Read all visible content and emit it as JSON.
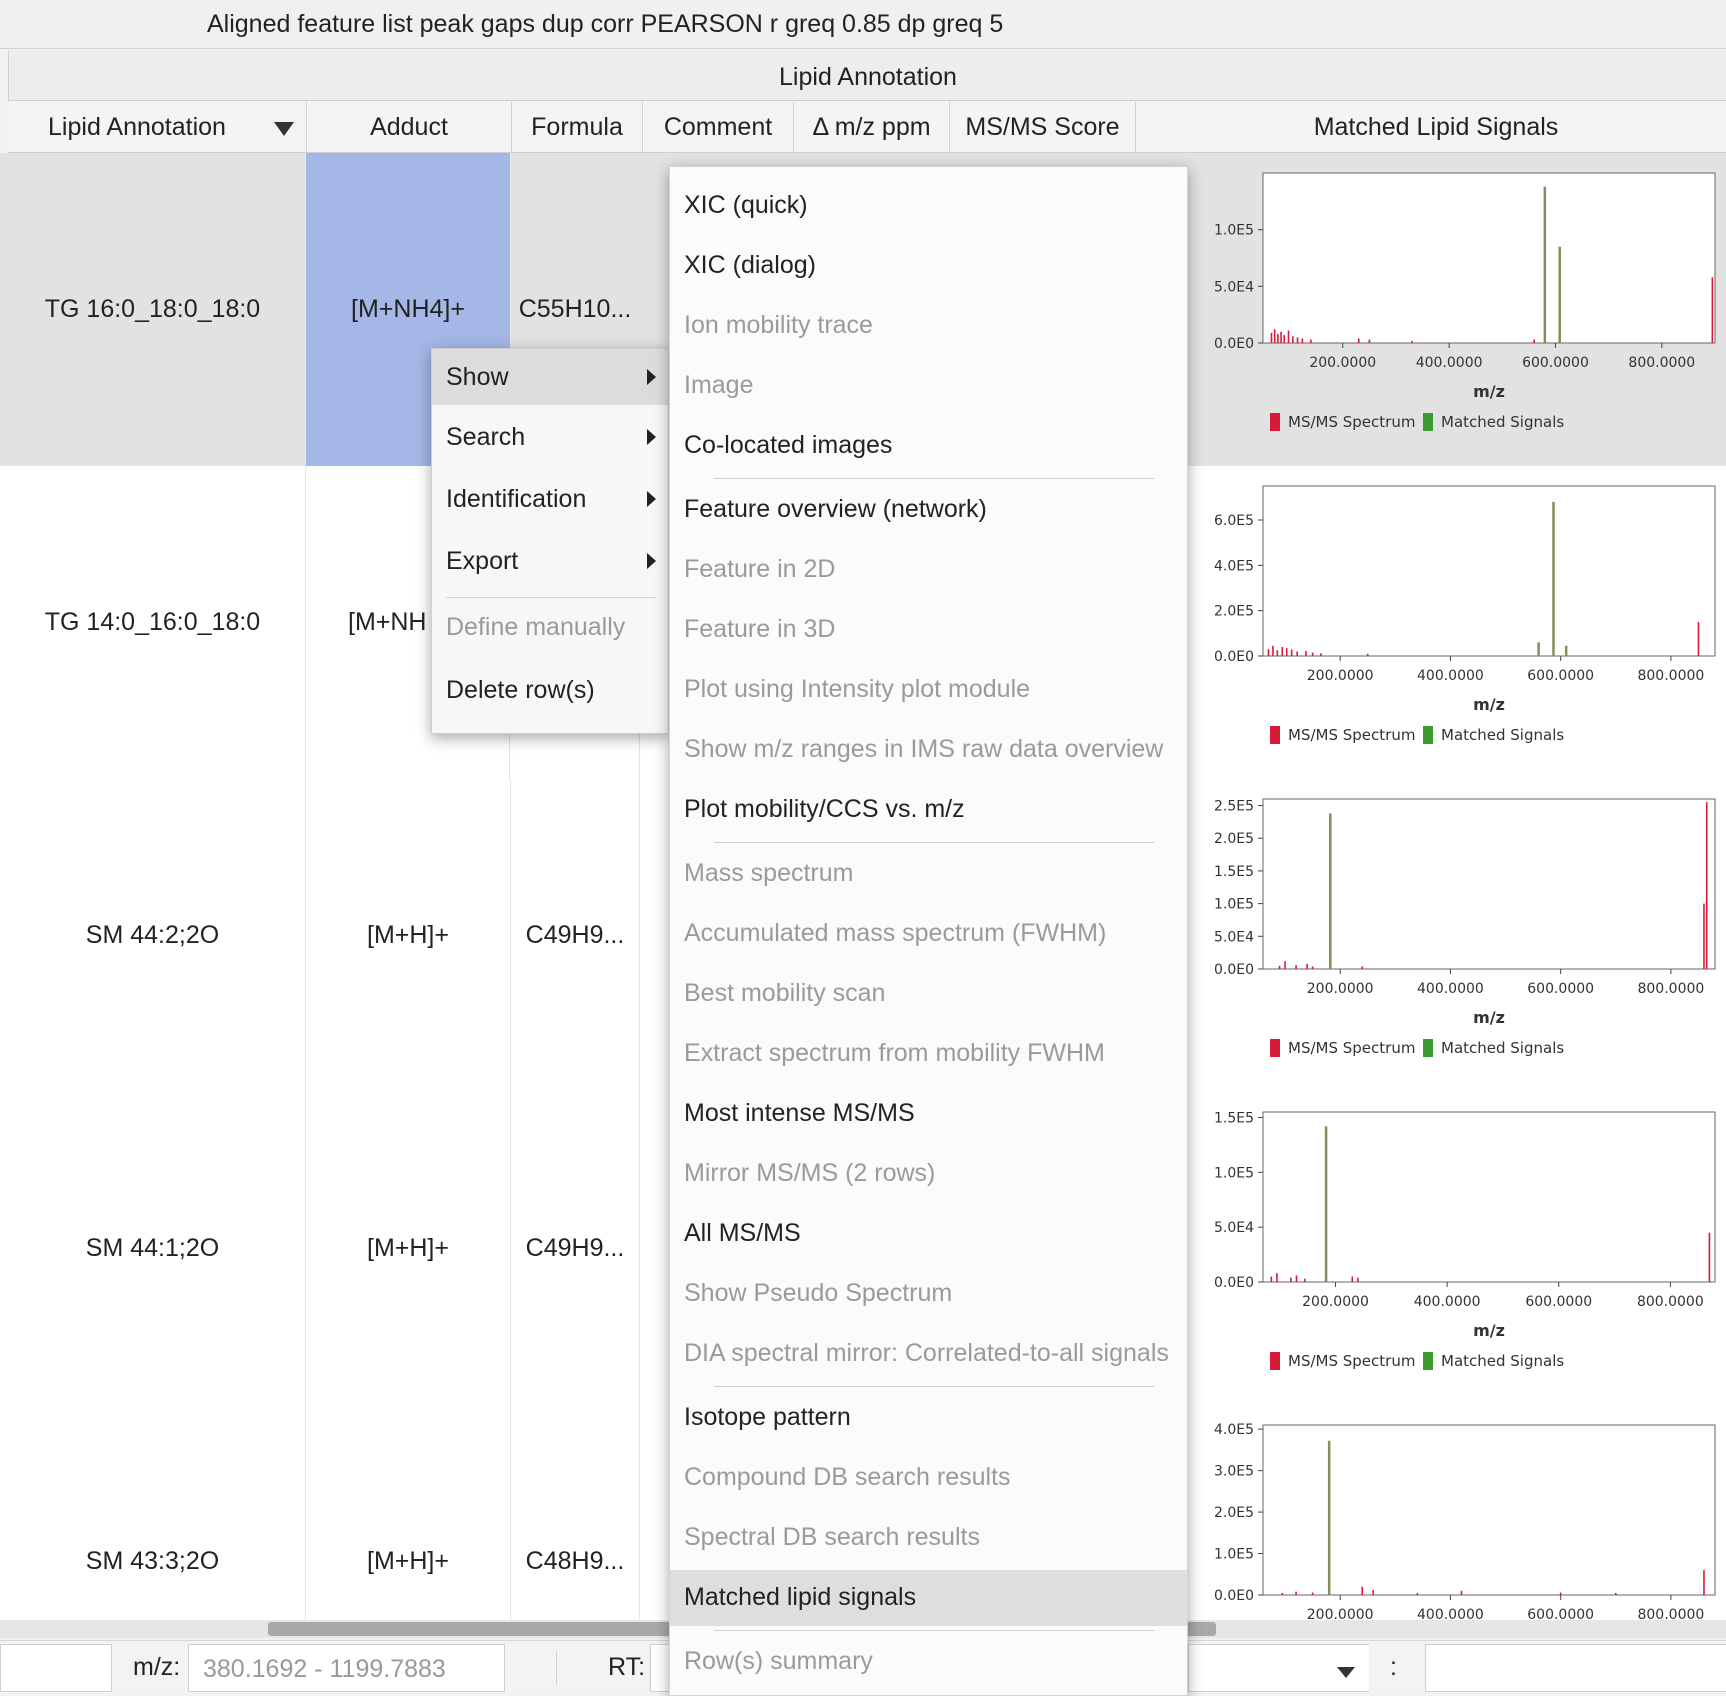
{
  "window_title": "Aligned feature list peak gaps dup corr PEARSON r greq 0.85 dp greq 5",
  "group_header": "Lipid Annotation",
  "columns": {
    "lipid": "Lipid Annotation",
    "adduct": "Adduct",
    "formula": "Formula",
    "comment": "Comment",
    "ppm": "Δ m/z ppm",
    "score": "MS/MS Score",
    "signals": "Matched Lipid Signals"
  },
  "rows": [
    {
      "lipid": "TG 16:0_18:0_18:0",
      "adduct": "[M+NH4]+",
      "formula": "C55H10...",
      "selected": true
    },
    {
      "lipid": "TG 14:0_16:0_18:0",
      "adduct": "[M+NH",
      "formula": "",
      "selected": false
    },
    {
      "lipid": "SM 44:2;2O",
      "adduct": "[M+H]+",
      "formula": "C49H9...",
      "selected": false
    },
    {
      "lipid": "SM 44:1;2O",
      "adduct": "[M+H]+",
      "formula": "C49H9...",
      "selected": false
    },
    {
      "lipid": "SM 43:3;2O",
      "adduct": "[M+H]+",
      "formula": "C48H9...",
      "selected": false
    }
  ],
  "context_menu": [
    {
      "label": "Show",
      "submenu": true,
      "active": true,
      "enabled": true
    },
    {
      "label": "Search",
      "submenu": true,
      "enabled": true
    },
    {
      "label": "Identification",
      "submenu": true,
      "enabled": true
    },
    {
      "label": "Export",
      "submenu": true,
      "enabled": true
    },
    {
      "label": "Define manually",
      "submenu": false,
      "enabled": false
    },
    {
      "label": "Delete row(s)",
      "submenu": false,
      "enabled": true
    }
  ],
  "show_submenu": [
    {
      "label": "XIC (quick)",
      "enabled": true
    },
    {
      "label": "XIC (dialog)",
      "enabled": true
    },
    {
      "label": "Ion mobility trace",
      "enabled": false
    },
    {
      "label": "Image",
      "enabled": false
    },
    {
      "label": "Co-located images",
      "enabled": true
    },
    {
      "label": "Feature overview (network)",
      "enabled": true
    },
    {
      "label": "Feature in 2D",
      "enabled": false
    },
    {
      "label": "Feature in 3D",
      "enabled": false
    },
    {
      "label": "Plot using Intensity plot module",
      "enabled": false
    },
    {
      "label": "Show m/z ranges in IMS raw data overview",
      "enabled": false
    },
    {
      "label": "Plot mobility/CCS vs. m/z",
      "enabled": true
    },
    {
      "label": "Mass spectrum",
      "enabled": false
    },
    {
      "label": "Accumulated mass spectrum (FWHM)",
      "enabled": false
    },
    {
      "label": "Best mobility scan",
      "enabled": false
    },
    {
      "label": "Extract spectrum from mobility FWHM",
      "enabled": false
    },
    {
      "label": "Most intense MS/MS",
      "enabled": true
    },
    {
      "label": "Mirror MS/MS (2 rows)",
      "enabled": false
    },
    {
      "label": "All MS/MS",
      "enabled": true
    },
    {
      "label": "Show Pseudo Spectrum",
      "enabled": false
    },
    {
      "label": "DIA spectral mirror: Correlated-to-all signals",
      "enabled": false
    },
    {
      "label": "Isotope pattern",
      "enabled": true
    },
    {
      "label": "Compound DB search results",
      "enabled": false
    },
    {
      "label": "Spectral DB search results",
      "enabled": false
    },
    {
      "label": "Matched lipid signals",
      "enabled": true,
      "highlighted": true
    },
    {
      "label": "Row(s) summary",
      "enabled": false
    }
  ],
  "status_bar": {
    "mz_label": "m/z:",
    "mz_value": "380.1692 - 1199.7883",
    "rt_label": "RT:",
    "colon": ":"
  },
  "chart_data": [
    {
      "type": "bar",
      "xlabel": "m/z",
      "xticks": [
        "200.0000",
        "400.0000",
        "600.0000",
        "800.0000"
      ],
      "xlim": [
        50,
        900
      ],
      "yticks": [
        "0.0E0",
        "5.0E4",
        "1.0E5"
      ],
      "ylim": [
        0,
        150000
      ],
      "legend": [
        "MS/MS Spectrum",
        "Matched Signals"
      ],
      "series": [
        {
          "name": "MS/MS Spectrum",
          "x": [
            66,
            72,
            78,
            84,
            90,
            98,
            106,
            115,
            124,
            140,
            230,
            250,
            330,
            560,
            895
          ],
          "values": [
            9000,
            12000,
            8000,
            10000,
            7000,
            11000,
            6000,
            5000,
            4000,
            3000,
            4000,
            3000,
            2000,
            3000,
            58000
          ]
        },
        {
          "name": "Matched Signals",
          "x": [
            580,
            608
          ],
          "values": [
            138000,
            85000
          ]
        }
      ]
    },
    {
      "type": "bar",
      "xlabel": "m/z",
      "xticks": [
        "200.0000",
        "400.0000",
        "600.0000",
        "800.0000"
      ],
      "xlim": [
        60,
        880
      ],
      "yticks": [
        "0.0E0",
        "2.0E5",
        "4.0E5",
        "6.0E5"
      ],
      "ylim": [
        0,
        750000
      ],
      "legend": [
        "MS/MS Spectrum",
        "Matched Signals"
      ],
      "series": [
        {
          "name": "MS/MS Spectrum",
          "x": [
            70,
            78,
            86,
            95,
            103,
            112,
            122,
            138,
            150,
            165,
            250,
            850
          ],
          "values": [
            30000,
            45000,
            25000,
            40000,
            35000,
            28000,
            20000,
            22000,
            15000,
            12000,
            10000,
            150000
          ]
        },
        {
          "name": "Matched Signals",
          "x": [
            560,
            587,
            610
          ],
          "values": [
            60000,
            680000,
            45000
          ]
        }
      ]
    },
    {
      "type": "bar",
      "xlabel": "m/z",
      "xticks": [
        "200.0000",
        "400.0000",
        "600.0000",
        "800.0000"
      ],
      "xlim": [
        60,
        880
      ],
      "yticks": [
        "0.0E0",
        "5.0E4",
        "1.0E5",
        "1.5E5",
        "2.0E5",
        "2.5E5"
      ],
      "ylim": [
        0,
        260000
      ],
      "legend": [
        "MS/MS Spectrum",
        "Matched Signals"
      ],
      "series": [
        {
          "name": "MS/MS Spectrum",
          "x": [
            90,
            100,
            120,
            140,
            150,
            240,
            860,
            865
          ],
          "values": [
            5000,
            12000,
            6000,
            8000,
            4000,
            4000,
            100000,
            255000
          ]
        },
        {
          "name": "Matched Signals",
          "x": [
            182
          ],
          "values": [
            238000
          ]
        }
      ]
    },
    {
      "type": "bar",
      "xlabel": "m/z",
      "xticks": [
        "200.0000",
        "400.0000",
        "600.0000",
        "800.0000"
      ],
      "xlim": [
        70,
        880
      ],
      "yticks": [
        "0.0E0",
        "5.0E4",
        "1.0E5",
        "1.5E5"
      ],
      "ylim": [
        0,
        155000
      ],
      "legend": [
        "MS/MS Spectrum",
        "Matched Signals"
      ],
      "series": [
        {
          "name": "MS/MS Spectrum",
          "x": [
            85,
            95,
            120,
            130,
            145,
            230,
            240,
            870
          ],
          "values": [
            5000,
            8000,
            4000,
            6000,
            3000,
            5000,
            4000,
            45000
          ]
        },
        {
          "name": "Matched Signals",
          "x": [
            183
          ],
          "values": [
            142000
          ]
        }
      ]
    },
    {
      "type": "bar",
      "xlabel": "m/z",
      "xticks": [
        "200.0000",
        "400.0000",
        "600.0000",
        "800.0000"
      ],
      "xlim": [
        60,
        880
      ],
      "yticks": [
        "0.0E0",
        "1.0E5",
        "2.0E5",
        "3.0E5",
        "4.0E5"
      ],
      "ylim": [
        0,
        410000
      ],
      "legend": [
        "MS/MS Spectrum",
        "Matched Signals"
      ],
      "series": [
        {
          "name": "MS/MS Spectrum",
          "x": [
            95,
            120,
            150,
            240,
            260,
            340,
            420,
            600,
            700,
            860
          ],
          "values": [
            5000,
            8000,
            6000,
            20000,
            12000,
            5000,
            10000,
            6000,
            5000,
            60000
          ]
        },
        {
          "name": "Matched Signals",
          "x": [
            180
          ],
          "values": [
            372000
          ]
        }
      ]
    }
  ]
}
